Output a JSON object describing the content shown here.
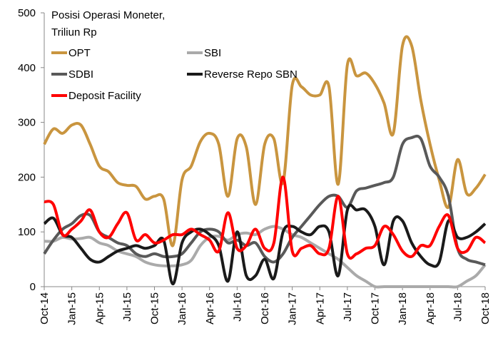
{
  "chart_data": {
    "type": "line",
    "title": "Posisi Operasi Moneter,",
    "subtitle": "Triliun Rp",
    "categories": [
      "Oct-14",
      null,
      null,
      "Jan-15",
      null,
      null,
      "Apr-15",
      null,
      null,
      "Jul-15",
      null,
      null,
      "Oct-15",
      null,
      null,
      "Jan-16",
      null,
      null,
      "Apr-16",
      null,
      null,
      "Jul-16",
      null,
      null,
      "Oct-16",
      null,
      null,
      "Jan-17",
      null,
      null,
      "Apr-17",
      null,
      null,
      "Jul-17",
      null,
      null,
      "Oct-17",
      null,
      null,
      "Jan-18",
      null,
      null,
      "Apr-18",
      null,
      null,
      "Jul-18",
      null,
      null,
      "Oct-18"
    ],
    "series": [
      {
        "name": "OPT",
        "color": "#c9953f",
        "values": [
          260,
          288,
          280,
          295,
          295,
          260,
          220,
          210,
          190,
          185,
          183,
          160,
          165,
          160,
          75,
          195,
          220,
          265,
          280,
          260,
          165,
          270,
          255,
          150,
          260,
          270,
          190,
          368,
          365,
          350,
          350,
          365,
          187,
          405,
          385,
          390,
          370,
          335,
          280,
          440,
          440,
          340,
          260,
          195,
          145,
          232,
          170,
          180,
          205
        ]
      },
      {
        "name": "SBI",
        "color": "#aaaaaa",
        "values": [
          83,
          83,
          90,
          87,
          88,
          90,
          80,
          75,
          65,
          60,
          55,
          45,
          40,
          38,
          38,
          40,
          48,
          75,
          90,
          92,
          85,
          95,
          98,
          95,
          105,
          110,
          105,
          95,
          90,
          80,
          70,
          60,
          50,
          35,
          20,
          10,
          0,
          0,
          0,
          0,
          0,
          0,
          0,
          0,
          0,
          0,
          10,
          20,
          40
        ]
      },
      {
        "name": "SDBI",
        "color": "#595959",
        "values": [
          60,
          85,
          105,
          115,
          130,
          130,
          100,
          90,
          80,
          75,
          60,
          55,
          60,
          55,
          55,
          60,
          80,
          100,
          105,
          100,
          80,
          85,
          75,
          80,
          55,
          45,
          60,
          90,
          110,
          130,
          150,
          165,
          165,
          145,
          175,
          180,
          185,
          190,
          200,
          260,
          272,
          270,
          220,
          200,
          165,
          70,
          50,
          45,
          40
        ]
      },
      {
        "name": "Reverse Repo SBN",
        "color": "#1a1a1a",
        "values": [
          115,
          125,
          95,
          90,
          70,
          50,
          45,
          55,
          65,
          70,
          75,
          70,
          75,
          85,
          5,
          80,
          100,
          105,
          95,
          75,
          10,
          100,
          20,
          20,
          50,
          15,
          100,
          110,
          100,
          95,
          110,
          100,
          20,
          140,
          140,
          140,
          110,
          40,
          120,
          120,
          80,
          55,
          40,
          45,
          120,
          90,
          90,
          100,
          115
        ]
      },
      {
        "name": "Deposit Facility",
        "color": "#ff0000",
        "values": [
          155,
          150,
          95,
          105,
          120,
          140,
          100,
          90,
          115,
          135,
          85,
          95,
          80,
          85,
          95,
          95,
          105,
          95,
          85,
          65,
          135,
          70,
          75,
          105,
          70,
          80,
          200,
          65,
          70,
          75,
          60,
          70,
          165,
          60,
          60,
          70,
          75,
          110,
          95,
          65,
          55,
          75,
          75,
          110,
          130,
          70,
          65,
          90,
          80
        ]
      }
    ],
    "ylim": [
      0,
      500
    ],
    "yticks": [
      0,
      100,
      200,
      300,
      400,
      500
    ],
    "grid": false
  }
}
